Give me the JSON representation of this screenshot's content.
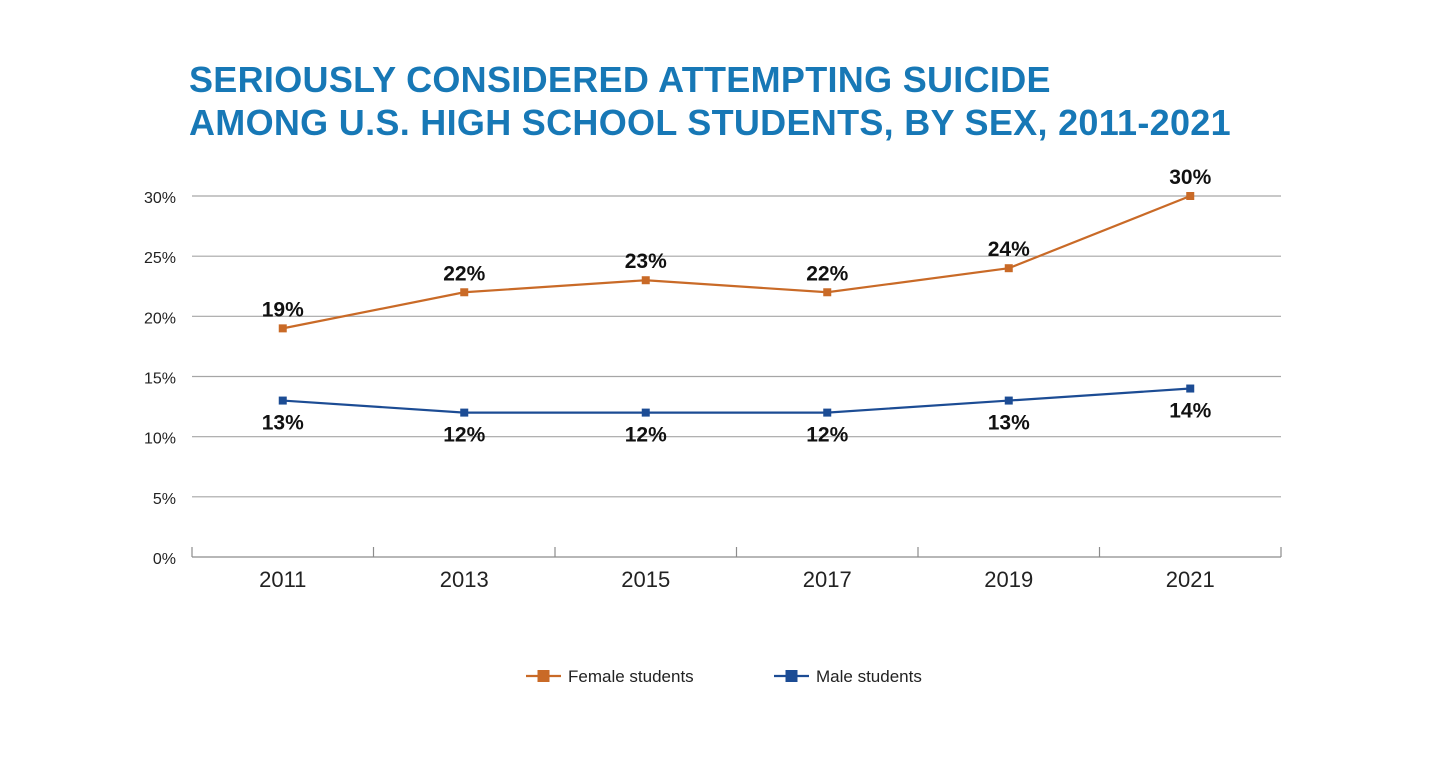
{
  "title_lines": [
    "SERIOUSLY CONSIDERED ATTEMPTING SUICIDE",
    "AMONG U.S. HIGH SCHOOL STUDENTS, BY SEX, 2011-2021"
  ],
  "chart_data": {
    "type": "line",
    "title": "SERIOUSLY CONSIDERED ATTEMPTING SUICIDE AMONG U.S. HIGH SCHOOL STUDENTS, BY SEX, 2011-2021",
    "xlabel": "",
    "ylabel": "",
    "categories": [
      "2011",
      "2013",
      "2015",
      "2017",
      "2019",
      "2021"
    ],
    "ylim": [
      0,
      30
    ],
    "y_ticks": [
      0,
      5,
      10,
      15,
      20,
      25,
      30
    ],
    "y_tick_labels": [
      "0%",
      "5%",
      "10%",
      "15%",
      "20%",
      "25%",
      "30%"
    ],
    "grid": true,
    "legend_position": "bottom",
    "series": [
      {
        "name": "Female students",
        "color": "#c96a27",
        "values": [
          19,
          22,
          23,
          22,
          24,
          30
        ],
        "labels": [
          "19%",
          "22%",
          "23%",
          "22%",
          "24%",
          "30%"
        ],
        "label_position": "above"
      },
      {
        "name": "Male students",
        "color": "#1c4c94",
        "values": [
          13,
          12,
          12,
          12,
          13,
          14
        ],
        "labels": [
          "13%",
          "12%",
          "12%",
          "12%",
          "13%",
          "14%"
        ],
        "label_position": "below"
      }
    ]
  }
}
